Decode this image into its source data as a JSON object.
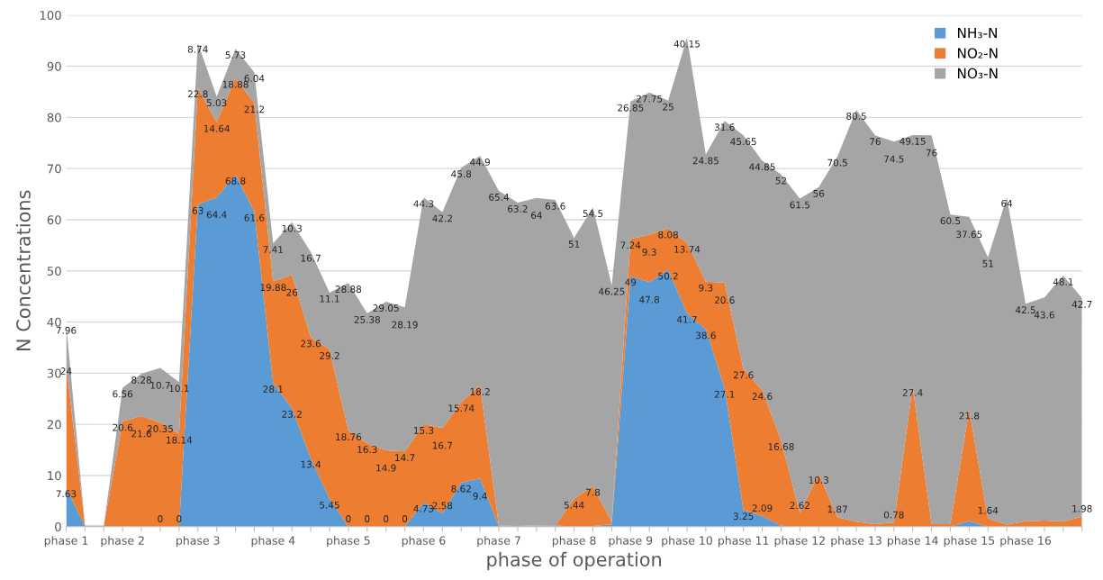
{
  "chart_data": {
    "type": "area",
    "stacked": true,
    "xlabel": "phase of operation",
    "ylabel": "N Concentrations",
    "categories": [
      "phase 1",
      null,
      null,
      "phase 2",
      null,
      null,
      null,
      "phase 3",
      null,
      null,
      null,
      "phase 4",
      null,
      null,
      null,
      "phase 5",
      null,
      null,
      null,
      "phase 6",
      null,
      null,
      null,
      "phase 7",
      null,
      null,
      null,
      "phase 8",
      null,
      null,
      "phase 9",
      null,
      null,
      "phase 10",
      null,
      null,
      "phase 11",
      null,
      null,
      "phase 12",
      null,
      null,
      "phase 13",
      null,
      null,
      "phase 14",
      null,
      null,
      "phase 15",
      null,
      null,
      "phase 16",
      null,
      null,
      null
    ],
    "series": [
      {
        "name": "NH₃-N",
        "color": "#5b9bd5",
        "values": [
          7.63,
          0.08,
          0.1,
          0,
          0,
          0,
          0,
          63,
          64.4,
          68.8,
          61.6,
          28.1,
          23.2,
          13.4,
          5.45,
          0,
          0,
          0,
          0,
          4.73,
          2.58,
          8.62,
          9.4,
          0.09,
          0.04,
          0.17,
          0.28,
          0,
          0.13,
          0.44,
          49,
          47.8,
          50.2,
          41.7,
          38.6,
          27.1,
          3.25,
          2.09,
          0.164,
          0,
          0.033,
          0,
          0,
          0,
          0,
          0,
          0,
          0,
          1.1,
          0,
          0,
          0,
          0,
          0,
          0
        ],
        "value_labels": [
          "7.63",
          null,
          null,
          null,
          null,
          "0",
          "0",
          "63",
          "64.4",
          "68.8",
          "61.6",
          "28.1",
          "23.2",
          "13.4",
          "5.45",
          "0",
          "0",
          "0",
          "0",
          "4.73",
          "2.58",
          "8.62",
          "9.4",
          null,
          null,
          null,
          null,
          null,
          null,
          null,
          "49",
          "47.8",
          "50.2",
          "41.7",
          "38.6",
          "27.1",
          "3.25",
          "2.09",
          null,
          null,
          null,
          null,
          null,
          null,
          null,
          null,
          null,
          null,
          null,
          null,
          null,
          null,
          null,
          null,
          null
        ]
      },
      {
        "name": "NO₂-N",
        "color": "#ed7d31",
        "values": [
          24,
          0.1,
          0.08,
          20.6,
          21.6,
          20.35,
          18.14,
          22.8,
          14.64,
          18.88,
          21.2,
          19.88,
          26,
          23.6,
          29.2,
          18.76,
          16.3,
          14.9,
          14.7,
          15.3,
          16.7,
          15.74,
          18.2,
          0.13,
          0.1,
          0.1,
          0,
          5.44,
          7.8,
          0.5,
          7.24,
          9.3,
          8.08,
          13.74,
          9.3,
          20.6,
          27.6,
          24.6,
          16.68,
          2.62,
          10.3,
          1.87,
          0.96,
          0.5,
          0.78,
          27.4,
          0.5,
          0.5,
          21.8,
          1.64,
          0.4,
          1.07,
          1.21,
          0.97,
          1.98
        ],
        "value_labels": [
          "24",
          null,
          null,
          "20.6",
          "21.6",
          "20.35",
          "18.14",
          "22.8",
          "14.64",
          "18.88",
          "21.2",
          "19.88",
          "26",
          "23.6",
          "29.2",
          "18.76",
          "16.3",
          "14.9",
          "14.7",
          "15.3",
          "16.7",
          "15.74",
          "18.2",
          null,
          null,
          null,
          null,
          "5.44",
          "7.8",
          null,
          "7.24",
          "9.3",
          "8.08",
          "13.74",
          "9.3",
          "20.6",
          "27.6",
          "24.6",
          "16.68",
          "2.62",
          "10.3",
          "1.87",
          null,
          null,
          "0.78",
          "27.4",
          null,
          null,
          "21.8",
          "1.64",
          null,
          null,
          null,
          null,
          "1.98"
        ]
      },
      {
        "name": "NO₃-N",
        "color": "#a5a5a5",
        "values": [
          7.96,
          0.06,
          0.06,
          6.56,
          8.28,
          10.7,
          10.1,
          8.74,
          5.03,
          5.73,
          6.04,
          7.41,
          10.3,
          16.7,
          11.1,
          28.88,
          25.38,
          29.05,
          28.19,
          44.3,
          42.2,
          45.8,
          44.9,
          65.4,
          63.2,
          64,
          63.6,
          51,
          54.5,
          46.25,
          26.85,
          27.75,
          25,
          40.15,
          24.85,
          31.6,
          45.65,
          44.85,
          52,
          61.5,
          56,
          70.5,
          80.5,
          76,
          74.5,
          49.15,
          76,
          60.5,
          37.65,
          51,
          64,
          42.5,
          43.6,
          48.1,
          42.7
        ],
        "value_labels": [
          "7.96",
          null,
          null,
          "6.56",
          "8.28",
          "10.7",
          "10.1",
          "8.74",
          "5.03",
          "5.73",
          "6.04",
          "7.41",
          "10.3",
          "16.7",
          "11.1",
          "28.88",
          "25.38",
          "29.05",
          "28.19",
          "44.3",
          "42.2",
          "45.8",
          "44.9",
          "65.4",
          "63.2",
          "64",
          "63.6",
          "51",
          "54.5",
          "46.25",
          "26.85",
          "27.75",
          "25",
          "40.15",
          "24.85",
          "31.6",
          "45.65",
          "44.85",
          "52",
          "61.5",
          "56",
          "70.5",
          "80.5",
          "76",
          "74.5",
          "49.15",
          "76",
          "60.5",
          "37.65",
          "51",
          "64",
          "42.5",
          "43.6",
          "48.1",
          "42.7"
        ]
      }
    ],
    "ylim": [
      0,
      100
    ],
    "yticks": [
      0,
      10,
      20,
      30,
      40,
      50,
      60,
      70,
      80,
      90,
      100
    ],
    "grid": "y",
    "legend": "top right"
  }
}
